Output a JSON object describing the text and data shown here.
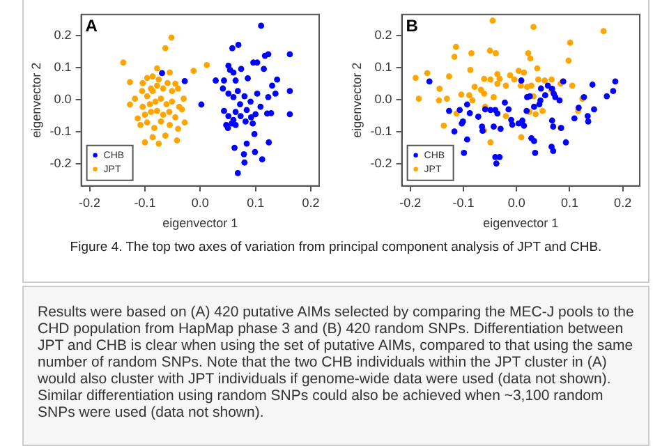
{
  "chart_data": [
    {
      "type": "scatter",
      "title": "A",
      "xlabel": "eigenvector 1",
      "ylabel": "eigenvector 2",
      "xlim": [
        -0.215,
        0.215
      ],
      "ylim": [
        -0.27,
        0.265
      ],
      "xticks": [
        -0.2,
        -0.1,
        {
          "value": 0,
          "label": "0.0"
        },
        0.1,
        0.2
      ],
      "yticks": [
        -0.2,
        -0.1,
        {
          "value": 0,
          "label": "0.0"
        },
        0.1,
        0.2
      ],
      "grid": false,
      "legend": "bottom left",
      "marker": "circle",
      "series": [
        {
          "name": "CHB",
          "color": "#0000ff",
          "x": [
            -0.069,
            -0.028,
            0.002,
            0.028,
            0.11,
            0.069,
            0.058,
            0.162,
            0.117,
            0.123,
            0.096,
            0.103,
            0.051,
            0.054,
            0.074,
            0.115,
            0.06,
            0.086,
            0.139,
            0.043,
            0.064,
            0.13,
            0.041,
            0.068,
            0.162,
            0.136,
            0.051,
            0.08,
            0.103,
            0.123,
            0.06,
            0.091,
            0.072,
            0.109,
            0.043,
            0.064,
            0.084,
            0.1,
            0.121,
            0.128,
            0.162,
            0.051,
            0.073,
            0.092,
            0.06,
            0.082,
            0.057,
            0.047,
            0.095,
            0.05,
            0.064,
            0.098,
            0.062,
            0.079,
            0.084,
            0.099,
            0.124,
            0.112,
            0.08,
            0.068
          ],
          "values": [
            0.082,
            0.057,
            -0.016,
            0.059,
            0.23,
            0.17,
            0.16,
            0.141,
            0.136,
            0.141,
            0.115,
            0.115,
            0.105,
            0.092,
            0.095,
            0.095,
            0.084,
            0.066,
            0.062,
            0.059,
            0.059,
            0.043,
            0.034,
            0.026,
            0.026,
            0.018,
            0.018,
            0.01,
            0.018,
            0.007,
            0.007,
            -0.007,
            -0.015,
            -0.023,
            -0.036,
            -0.039,
            -0.033,
            -0.046,
            -0.044,
            -0.043,
            -0.046,
            -0.052,
            -0.052,
            -0.056,
            -0.064,
            -0.069,
            -0.075,
            -0.08,
            -0.075,
            -0.089,
            -0.08,
            -0.108,
            -0.151,
            -0.171,
            -0.138,
            -0.164,
            -0.134,
            -0.187,
            -0.197,
            -0.23
          ]
        },
        {
          "name": "JPT",
          "color": "#ffa500",
          "x": [
            -0.139,
            -0.052,
            -0.063,
            -0.127,
            -0.078,
            -0.012,
            0.012,
            -0.026,
            -0.045,
            -0.104,
            -0.096,
            -0.086,
            -0.075,
            -0.067,
            -0.055,
            -0.118,
            -0.127,
            -0.105,
            -0.096,
            -0.086,
            -0.078,
            -0.067,
            -0.059,
            -0.051,
            -0.04,
            -0.104,
            -0.091,
            -0.081,
            -0.071,
            -0.061,
            -0.051,
            -0.038,
            -0.03,
            -0.1,
            -0.089,
            -0.078,
            -0.067,
            -0.056,
            -0.045,
            -0.033,
            -0.108,
            -0.096,
            -0.083,
            -0.071,
            -0.055,
            -0.04,
            -0.028,
            -0.1,
            -0.086,
            -0.075,
            -0.063,
            -0.042,
            -0.113,
            -0.089
          ],
          "values": [
            0.115,
            0.193,
            0.16,
            0.054,
            0.097,
            0.089,
            0.107,
            null,
            0.049,
            0.051,
            0.067,
            0.072,
            0.062,
            null,
            0.084,
            0.002,
            -0.016,
            0.026,
            0.01,
            0.026,
            0.043,
            0.034,
            0.051,
            0.026,
            0.034,
            -0.023,
            -0.015,
            -0.007,
            0.002,
            -0.015,
            -0.007,
            -0.023,
            0.002,
            -0.048,
            -0.039,
            -0.036,
            -0.048,
            -0.039,
            -0.056,
            -0.031,
            -0.08,
            -0.072,
            -0.089,
            -0.069,
            -0.08,
            -0.092,
            -0.072,
            -0.134,
            -0.118,
            -0.138,
            -0.113,
            -0.128,
            -0.059,
            0.034
          ]
        }
      ]
    },
    {
      "type": "scatter",
      "title": "B",
      "xlabel": "eigenvector 1",
      "ylabel": "eigenvector 2",
      "xlim": [
        -0.216,
        0.232
      ],
      "ylim": [
        -0.27,
        0.265
      ],
      "xticks": [
        -0.2,
        -0.1,
        {
          "value": 0,
          "label": "0.0"
        },
        0.1,
        0.2
      ],
      "yticks": [
        -0.2,
        -0.1,
        {
          "value": 0,
          "label": "0.0"
        },
        0.1,
        0.2
      ],
      "grid": false,
      "legend": "bottom left",
      "marker": "circle",
      "annotations": [
        "Figure 4. The top two axes of variation from principal component analysis of JPT and CHB.",
        "Results were based on (A) 420 putative AIMs selected by comparing the MEC-J pools to the CHD population from HapMap phase 3 and (B) 420 random SNPs. Differentiation between JPT and CHB is clear when using the set of putative AIMs, compared to that using the same number of random SNPs. Note that the two CHB individuals within the JPT cluster in (A) would also cluster with JPT individuals if genome-wide data were used (data not shown). Similar differentiation using random SNPs could also be achieved when ~3,100 random SNPs were used (data not shown)."
      ],
      "series": [
        {
          "name": "CHB",
          "color": "#0000ff",
          "x": [
            -0.164,
            -0.127,
            -0.107,
            -0.117,
            -0.101,
            -0.103,
            -0.093,
            -0.088,
            -0.093,
            -0.099,
            -0.072,
            -0.065,
            -0.064,
            -0.059,
            -0.049,
            -0.043,
            -0.04,
            -0.036,
            -0.03,
            -0.04,
            -0.032,
            -0.038,
            -0.022,
            -0.015,
            -0.01,
            -0.008,
            0.009,
            0.004,
            0.011,
            0.014,
            0.019,
            0.02,
            0.025,
            0.028,
            0.033,
            0.035,
            0.033,
            0.043,
            0.045,
            0.046,
            0.054,
            0.059,
            0.067,
            0.07,
            0.073,
            0.067,
            0.069,
            0.066,
            0.069,
            0.081,
            0.084,
            0.088,
            0.093,
            0.109,
            0.117,
            0.127,
            0.134,
            0.135,
            0.146,
            0.143,
            0.17,
            0.182,
            0.186
          ],
          "values": [
            0.056,
            -0.036,
            -0.033,
            -0.1,
            -0.069,
            -0.075,
            -0.016,
            -0.043,
            -0.125,
            -0.167,
            -0.054,
            -0.085,
            -0.098,
            -0.031,
            -0.033,
            -0.085,
            -0.033,
            -0.044,
            -0.092,
            -0.18,
            -0.18,
            -0.2,
            -0.01,
            -0.031,
            -0.064,
            -0.079,
            0.059,
            -0.075,
            -0.066,
            -0.082,
            -0.036,
            0.007,
            0.01,
            -0.121,
            -0.13,
            -0.167,
            -0.023,
            -0.015,
            -0.003,
            0.034,
            0.013,
            0.043,
            0.033,
            0.018,
            0.007,
            -0.066,
            -0.085,
            -0.148,
            -0.161,
            -0.003,
            -0.089,
            0.056,
            -0.134,
            -0.059,
            -0.026,
            0.007,
            -0.052,
            -0.069,
            -0.031,
            0.046,
            0.01,
            0.026,
            0.056
          ]
        },
        {
          "name": "JPT",
          "color": "#ffa500",
          "x": [
            -0.045,
            0.032,
            0.164,
            0.101,
            -0.114,
            -0.05,
            -0.039,
            -0.085,
            -0.117,
            0.022,
            0.026,
            0.098,
            -0.087,
            0.039,
            -0.168,
            -0.19,
            -0.127,
            -0.036,
            -0.012,
            0.004,
            0.014,
            -0.061,
            -0.049,
            -0.032,
            -0.004,
            0.041,
            0.053,
            0.066,
            0.083,
            0.087,
            0.105,
            -0.036,
            -0.02,
            0.008,
            0.02,
            0.028,
            -0.145,
            -0.079,
            -0.067,
            -0.061,
            -0.184,
            -0.104,
            -0.089,
            -0.083,
            -0.043,
            0.032,
            -0.146,
            -0.131,
            0.124,
            -0.113,
            -0.059,
            0.024,
            0.036,
            0.049,
            0.116,
            -0.137,
            -0.061,
            0.009,
            0.083,
            -0.049,
            -0.02,
            0.065
          ],
          "values": [
            0.246,
            0.226,
            0.213,
            0.177,
            0.164,
            0.152,
            0.144,
            0.144,
            0.133,
            0.144,
            0.128,
            0.121,
            0.092,
            0.097,
            0.082,
            0.067,
            0.072,
            0.079,
            0.075,
            0.089,
            0.084,
            0.064,
            0.062,
            0.064,
            0.062,
            0.062,
            0.059,
            0.062,
            0.049,
            0.056,
            0.043,
            0.049,
            0.043,
            0.043,
            0.039,
            0.043,
            0.033,
            0.039,
            0.03,
            0.018,
            0.002,
            0.015,
            0.013,
            -0.003,
            0.007,
            0.01,
            -0.003,
            0.002,
            0.002,
            -0.044,
            -0.023,
            -0.039,
            -0.046,
            -0.036,
            -0.036,
            -0.082,
            -0.097,
            -0.118,
            -0.089,
            -0.134,
            -0.052,
            0.03
          ]
        }
      ]
    }
  ]
}
